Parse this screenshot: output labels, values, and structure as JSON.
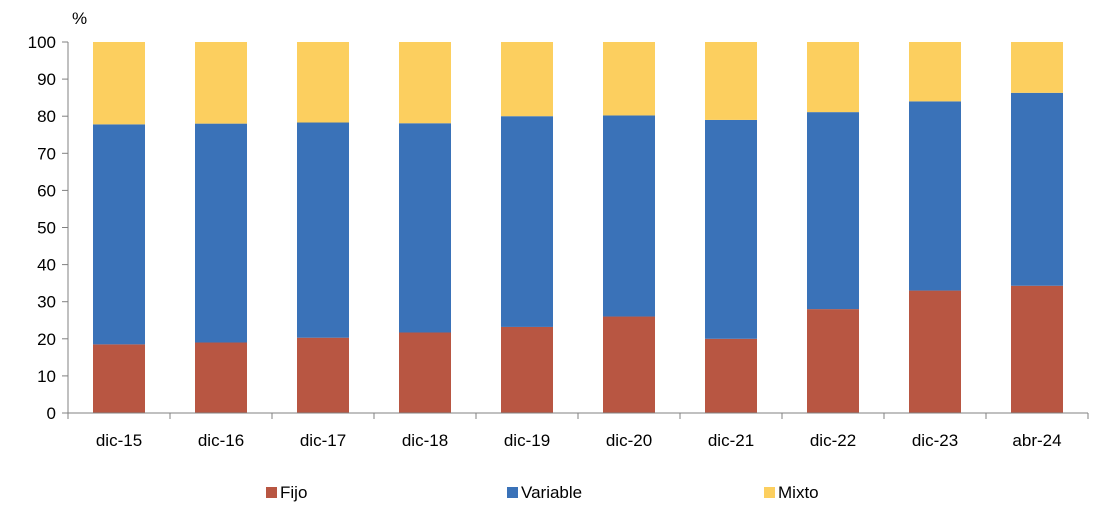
{
  "chart_data": {
    "type": "bar",
    "stacked": true,
    "y_unit_label": "%",
    "title": "",
    "xlabel": "",
    "ylabel": "",
    "ylim": [
      0,
      100
    ],
    "yticks": [
      0,
      10,
      20,
      30,
      40,
      50,
      60,
      70,
      80,
      90,
      100
    ],
    "grid": false,
    "legend_position": "bottom",
    "categories": [
      "dic-15",
      "dic-16",
      "dic-17",
      "dic-18",
      "dic-19",
      "dic-20",
      "dic-21",
      "dic-22",
      "dic-23",
      "abr-24"
    ],
    "series": [
      {
        "name": "Fijo",
        "color": "#b85642",
        "values": [
          18.5,
          19.0,
          20.3,
          21.7,
          23.2,
          26.0,
          20.0,
          28.0,
          33.0,
          34.3
        ]
      },
      {
        "name": "Variable",
        "color": "#3a72b8",
        "values": [
          59.3,
          59.0,
          58.0,
          56.4,
          56.8,
          54.2,
          59.0,
          53.1,
          51.0,
          52.0
        ]
      },
      {
        "name": "Mixto",
        "color": "#fccf5f",
        "values": [
          22.2,
          22.0,
          21.7,
          21.9,
          20.0,
          19.8,
          21.0,
          18.9,
          16.0,
          13.7
        ]
      }
    ]
  }
}
